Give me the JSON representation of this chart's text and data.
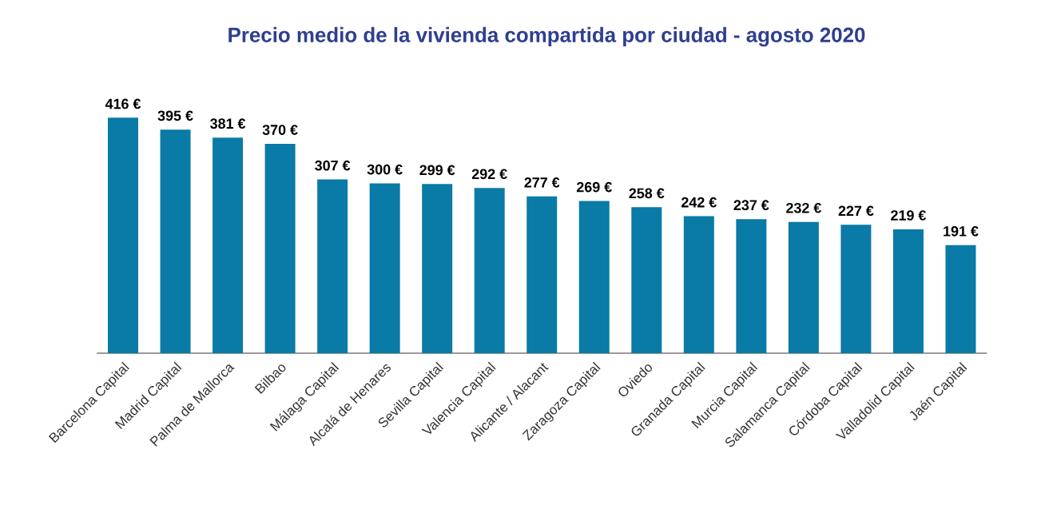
{
  "chart_data": {
    "type": "bar",
    "title": "Precio medio de la vivienda compartida por ciudad - agosto 2020",
    "categories": [
      "Barcelona Capital",
      "Madrid Capital",
      "Palma de Mallorca",
      "Bilbao",
      "Málaga Capital",
      "Alcalá de Henares",
      "Sevilla Capital",
      "Valencia Capital",
      "Alicante / Alacant",
      "Zaragoza Capital",
      "Oviedo",
      "Granada Capital",
      "Murcia Capital",
      "Salamanca Capital",
      "Córdoba Capital",
      "Valladolid Capital",
      "Jaén Capital"
    ],
    "values": [
      416,
      395,
      381,
      370,
      307,
      300,
      299,
      292,
      277,
      269,
      258,
      242,
      237,
      232,
      227,
      219,
      191
    ],
    "value_labels": [
      "416 €",
      "395 €",
      "381 €",
      "370 €",
      "307 €",
      "300 €",
      "299 €",
      "292 €",
      "277 €",
      "269 €",
      "258 €",
      "242 €",
      "237 €",
      "232 €",
      "227 €",
      "219 €",
      "191 €"
    ],
    "color": "#0a7aa6"
  }
}
